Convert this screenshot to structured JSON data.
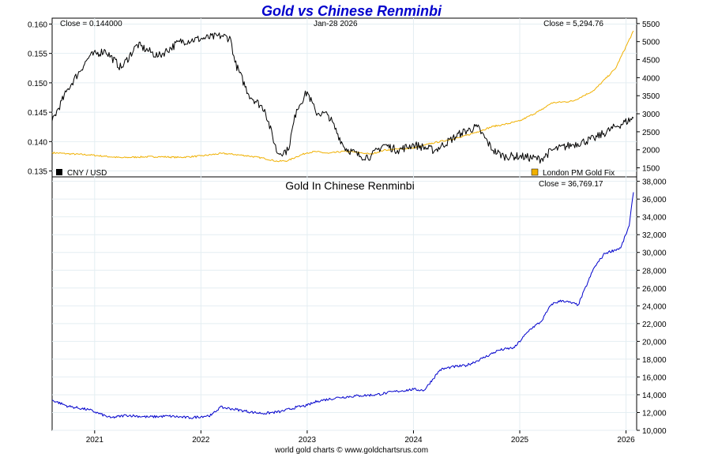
{
  "chart_data": [
    {
      "type": "line",
      "title": "Gold vs Chinese Renminbi",
      "date_label": "Jan-28  2026",
      "x": [
        2020.6,
        2020.75,
        2020.95,
        2021.1,
        2021.25,
        2021.4,
        2021.6,
        2021.8,
        2022.0,
        2022.2,
        2022.28,
        2022.32,
        2022.45,
        2022.6,
        2022.72,
        2022.82,
        2022.9,
        2023.0,
        2023.08,
        2023.2,
        2023.35,
        2023.5,
        2023.6,
        2023.72,
        2023.85,
        2024.0,
        2024.2,
        2024.45,
        2024.6,
        2024.75,
        2024.85,
        2025.0,
        2025.2,
        2025.3,
        2025.5,
        2025.7,
        2025.9,
        2026.07
      ],
      "series": [
        {
          "name": "CNY / USD",
          "color": "#000000",
          "axis": "left",
          "close_label": "Close = 0.144000",
          "values": [
            0.1435,
            0.149,
            0.1545,
            0.1555,
            0.1525,
            0.1565,
            0.1545,
            0.157,
            0.1575,
            0.158,
            0.1575,
            0.1535,
            0.148,
            0.1455,
            0.138,
            0.1385,
            0.1455,
            0.1485,
            0.145,
            0.1445,
            0.139,
            0.1375,
            0.1375,
            0.1395,
            0.1385,
            0.1395,
            0.1385,
            0.1415,
            0.1425,
            0.1385,
            0.1375,
            0.1375,
            0.137,
            0.1385,
            0.1395,
            0.1405,
            0.1425,
            0.144
          ]
        },
        {
          "name": "London PM Gold Fix",
          "color": "#f0b000",
          "axis": "right",
          "close_label": "Close = 5,294.76",
          "values": [
            1920,
            1890,
            1860,
            1820,
            1780,
            1800,
            1810,
            1790,
            1830,
            1900,
            1880,
            1870,
            1830,
            1760,
            1680,
            1700,
            1810,
            1920,
            1950,
            1900,
            1960,
            1920,
            1880,
            1990,
            2020,
            2050,
            2200,
            2350,
            2500,
            2650,
            2700,
            2800,
            3100,
            3300,
            3350,
            3650,
            4250,
            5294.76
          ]
        }
      ],
      "ylim_left": [
        0.134,
        0.161
      ],
      "ylim_right": [
        1250,
        5650
      ],
      "yticks_left": [
        "0.160",
        "0.155",
        "0.150",
        "0.145",
        "0.140",
        "0.135"
      ],
      "yticks_right": [
        "5500",
        "5000",
        "4500",
        "4000",
        "3500",
        "3000",
        "2500",
        "2000",
        "1500"
      ],
      "legend": "bottom",
      "grid": true
    },
    {
      "type": "line",
      "title": "Gold In Chinese Renminbi",
      "x": [
        2020.6,
        2020.75,
        2020.95,
        2021.15,
        2021.3,
        2021.5,
        2021.7,
        2021.9,
        2022.1,
        2022.18,
        2022.3,
        2022.5,
        2022.6,
        2022.75,
        2022.9,
        2023.0,
        2023.1,
        2023.3,
        2023.5,
        2023.65,
        2023.75,
        2023.85,
        2024.0,
        2024.1,
        2024.25,
        2024.35,
        2024.5,
        2024.65,
        2024.8,
        2024.95,
        2025.1,
        2025.2,
        2025.3,
        2025.4,
        2025.55,
        2025.7,
        2025.8,
        2025.95,
        2026.03,
        2026.07
      ],
      "series": [
        {
          "name": "Gold In Chinese Renminbi",
          "color": "#0000cc",
          "axis": "right",
          "close_label": "Close = 36,769.17",
          "values": [
            13400,
            12700,
            12300,
            11400,
            11700,
            11500,
            11600,
            11400,
            11700,
            12600,
            12400,
            12000,
            11900,
            12100,
            12600,
            12800,
            13300,
            13700,
            13900,
            14000,
            14200,
            14400,
            14600,
            14500,
            16800,
            17100,
            17300,
            18100,
            19000,
            19300,
            21400,
            22200,
            24200,
            24600,
            24100,
            28300,
            29900,
            30500,
            33000,
            36769.17
          ]
        }
      ],
      "ylim": [
        10000,
        38500
      ],
      "yticks": [
        "38,000",
        "36,000",
        "34,000",
        "32,000",
        "30,000",
        "28,000",
        "26,000",
        "24,000",
        "22,000",
        "20,000",
        "18,000",
        "16,000",
        "14,000",
        "12,000",
        "10,000"
      ],
      "xticks": [
        "2021",
        "2022",
        "2023",
        "2024",
        "2025",
        "2026"
      ],
      "grid": true
    }
  ],
  "footer": "world gold charts © www.goldchartsrus.com"
}
